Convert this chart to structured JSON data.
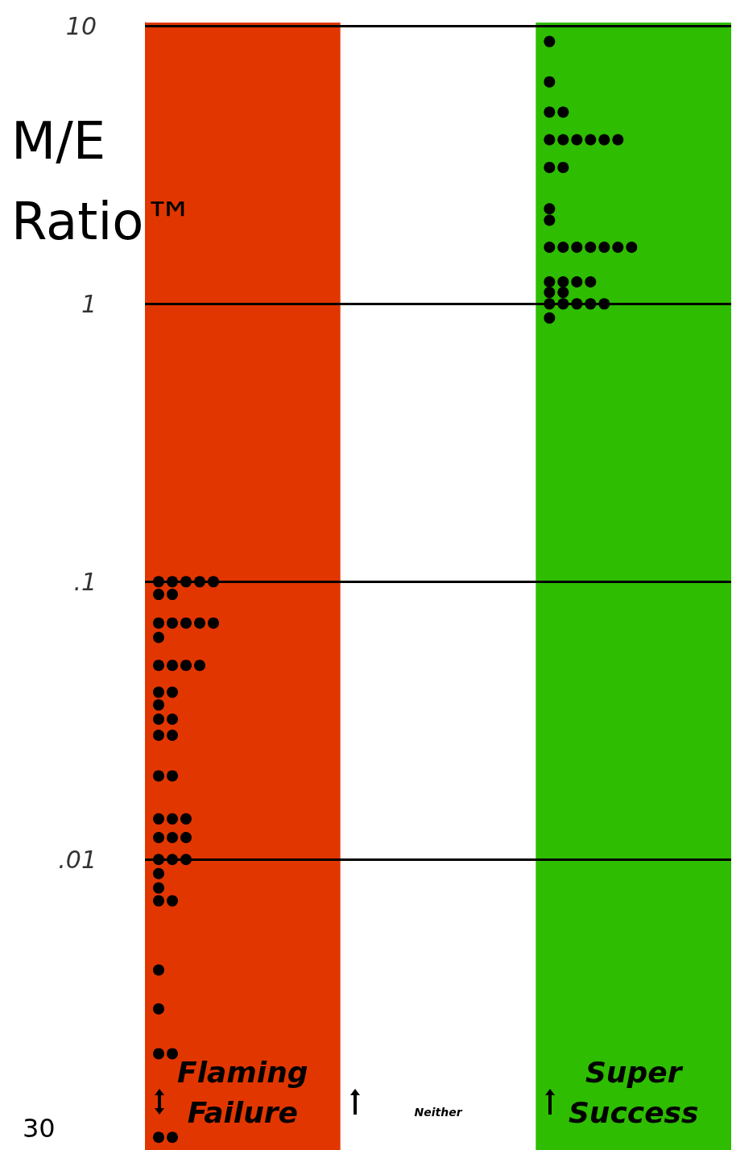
{
  "chart_data": {
    "type": "scatter",
    "ylabel": "M/E Ratio™",
    "log": "y",
    "categories": [
      "Flaming Failure",
      "Neither",
      "Super Success"
    ],
    "ylim": [
      0.0009,
      10.3
    ],
    "yticks": [
      10,
      1,
      {
        "value": 0.1,
        "label": ".1"
      },
      {
        "value": 0.01,
        "label": ".01"
      }
    ],
    "grid": "y",
    "marker": "circle",
    "bands": [
      {
        "axis": "x",
        "from": "Flaming Failure",
        "to": "Flaming Failure",
        "color": "#e23600"
      },
      {
        "axis": "x",
        "from": "Super Success",
        "to": "Super Success",
        "color": "#2ebd00"
      }
    ],
    "series": [
      {
        "color": "#000000",
        "x": [
          "Flaming Failure",
          "Flaming Failure",
          "Flaming Failure",
          "Flaming Failure",
          "Flaming Failure",
          "Flaming Failure",
          "Flaming Failure",
          "Flaming Failure",
          "Flaming Failure",
          "Flaming Failure",
          "Flaming Failure",
          "Flaming Failure",
          "Flaming Failure",
          "Flaming Failure",
          "Flaming Failure",
          "Flaming Failure",
          "Flaming Failure",
          "Flaming Failure",
          "Flaming Failure",
          "Flaming Failure",
          "Flaming Failure",
          "Flaming Failure",
          "Flaming Failure",
          "Flaming Failure",
          "Flaming Failure",
          "Flaming Failure",
          "Flaming Failure",
          "Flaming Failure",
          "Flaming Failure",
          "Flaming Failure",
          "Flaming Failure",
          "Flaming Failure",
          "Flaming Failure",
          "Flaming Failure",
          "Flaming Failure",
          "Flaming Failure",
          "Flaming Failure",
          "Flaming Failure",
          "Flaming Failure",
          "Flaming Failure",
          "Flaming Failure",
          "Flaming Failure",
          "Flaming Failure",
          "Flaming Failure",
          "Flaming Failure"
        ],
        "values": [
          0.1,
          0.1,
          0.1,
          0.1,
          0.1,
          0.09,
          0.09,
          0.071,
          0.071,
          0.071,
          0.071,
          0.071,
          0.063,
          0.05,
          0.05,
          0.05,
          0.05,
          0.04,
          0.04,
          0.036,
          0.032,
          0.032,
          0.028,
          0.028,
          0.02,
          0.02,
          0.014,
          0.014,
          0.014,
          0.012,
          0.012,
          0.012,
          0.01,
          0.01,
          0.01,
          0.0089,
          0.0079,
          0.0071,
          0.0071,
          0.004,
          0.0029,
          0.002,
          0.002,
          0.001,
          0.001
        ]
      },
      {
        "color": "#000000",
        "x": [
          "Super Success",
          "Super Success",
          "Super Success",
          "Super Success",
          "Super Success",
          "Super Success",
          "Super Success",
          "Super Success",
          "Super Success",
          "Super Success",
          "Super Success",
          "Super Success",
          "Super Success",
          "Super Success",
          "Super Success",
          "Super Success",
          "Super Success",
          "Super Success",
          "Super Success",
          "Super Success",
          "Super Success",
          "Super Success",
          "Super Success",
          "Super Success",
          "Super Success",
          "Super Success",
          "Super Success",
          "Super Success",
          "Super Success",
          "Super Success",
          "Super Success",
          "Super Success",
          "Super Success"
        ],
        "values": [
          8.8,
          6.3,
          4.9,
          4.9,
          3.9,
          3.9,
          3.9,
          3.9,
          3.9,
          3.9,
          3.1,
          3.1,
          2.2,
          2.0,
          1.6,
          1.6,
          1.6,
          1.6,
          1.6,
          1.6,
          1.6,
          1.2,
          1.2,
          1.2,
          1.2,
          1.1,
          1.1,
          1.0,
          1.0,
          1.0,
          1.0,
          1.0,
          0.89
        ]
      }
    ],
    "annotations": [
      "30"
    ]
  }
}
